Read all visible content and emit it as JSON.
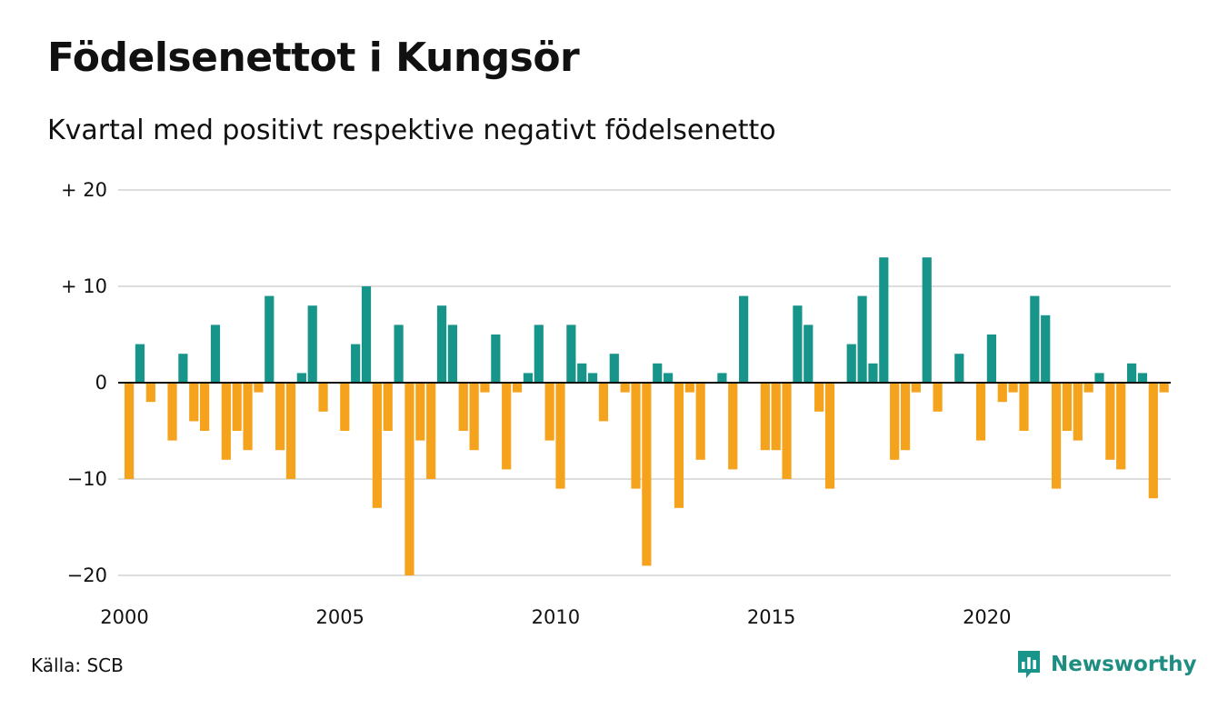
{
  "title": "Födelsenettot i Kungsör",
  "subtitle": "Kvartal med positivt respektive negativt födelsenetto",
  "source": "Källa: SCB",
  "brand": {
    "name": "Newsworthy",
    "icon": "newsworthy-logo-icon"
  },
  "colors": {
    "positive": "#18958a",
    "negative": "#f5a21c",
    "grid": "#dddddd",
    "zero_line": "#111111"
  },
  "chart_data": {
    "type": "bar",
    "title": "Födelsenettot i Kungsör",
    "subtitle": "Kvartal med positivt respektive negativt födelsenetto",
    "xlabel": "",
    "ylabel": "",
    "x_ticks": [
      "2000",
      "2005",
      "2010",
      "2015",
      "2020"
    ],
    "y_ticks": [
      {
        "value": 20,
        "label": "+ 20"
      },
      {
        "value": 10,
        "label": "+ 10"
      },
      {
        "value": 0,
        "label": "0"
      },
      {
        "value": -10,
        "label": "−10"
      },
      {
        "value": -20,
        "label": "−20"
      }
    ],
    "ylim": [
      -20,
      20
    ],
    "xlim": [
      "2000",
      "2024"
    ],
    "grid": true,
    "legend": "none",
    "first_period": "2000 Q1",
    "values": [
      -10,
      4,
      -2,
      0,
      -6,
      3,
      -4,
      -5,
      6,
      -8,
      -5,
      -7,
      -1,
      9,
      -7,
      -10,
      1,
      8,
      -3,
      0,
      -5,
      4,
      10,
      -13,
      -5,
      6,
      -20,
      -6,
      -10,
      8,
      6,
      -5,
      -7,
      -1,
      5,
      -9,
      -1,
      1,
      6,
      -6,
      -11,
      6,
      2,
      1,
      -4,
      3,
      -1,
      -11,
      -19,
      2,
      1,
      -13,
      -1,
      -8,
      0,
      1,
      -9,
      9,
      0,
      -7,
      -7,
      -10,
      8,
      6,
      -3,
      -11,
      0,
      4,
      9,
      2,
      13,
      -8,
      -7,
      -1,
      13,
      -3,
      0,
      3,
      0,
      -6,
      5,
      -2,
      -1,
      -5,
      9,
      7,
      -11,
      -5,
      -6,
      -1,
      1,
      -8,
      -9,
      2,
      1,
      -12,
      -1
    ]
  }
}
